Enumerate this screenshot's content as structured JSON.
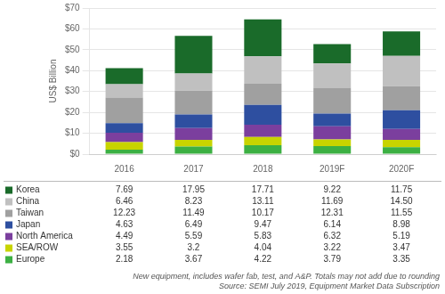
{
  "chart_data": {
    "type": "bar",
    "stacked": true,
    "categories": [
      "2016",
      "2017",
      "2018",
      "2019F",
      "2020F"
    ],
    "series": [
      {
        "name": "Europe",
        "color": "#3cb043",
        "values": [
          2.18,
          3.67,
          4.22,
          3.79,
          3.35
        ],
        "value_labels": [
          "2.18",
          "3.67",
          "4.22",
          "3.79",
          "3.35"
        ]
      },
      {
        "name": "SEA/ROW",
        "color": "#c8d400",
        "values": [
          3.55,
          3.2,
          4.04,
          3.22,
          3.47
        ],
        "value_labels": [
          "3.55",
          "3.2",
          "4.04",
          "3.22",
          "3.47"
        ]
      },
      {
        "name": "North America",
        "color": "#7b3f9e",
        "values": [
          4.49,
          5.59,
          5.83,
          6.32,
          5.19
        ],
        "value_labels": [
          "4.49",
          "5.59",
          "5.83",
          "6.32",
          "5.19"
        ]
      },
      {
        "name": "Japan",
        "color": "#2e4fa0",
        "values": [
          4.63,
          6.49,
          9.47,
          6.14,
          8.98
        ],
        "value_labels": [
          "4.63",
          "6.49",
          "9.47",
          "6.14",
          "8.98"
        ]
      },
      {
        "name": "Taiwan",
        "color": "#a0a0a0",
        "values": [
          12.23,
          11.49,
          10.17,
          12.31,
          11.55
        ],
        "value_labels": [
          "12.23",
          "11.49",
          "10.17",
          "12.31",
          "11.55"
        ]
      },
      {
        "name": "China",
        "color": "#c0c0c0",
        "values": [
          6.46,
          8.23,
          13.11,
          11.69,
          14.5
        ],
        "value_labels": [
          "6.46",
          "8.23",
          "13.11",
          "11.69",
          "14.50"
        ]
      },
      {
        "name": "Korea",
        "color": "#1a6b2a",
        "values": [
          7.69,
          17.95,
          17.71,
          9.22,
          11.75
        ],
        "value_labels": [
          "7.69",
          "17.95",
          "17.71",
          "9.22",
          "11.75"
        ]
      }
    ],
    "ylabel": "US$ Billion",
    "ylim": [
      0,
      70
    ],
    "yticks": [
      {
        "value": 0,
        "label": "$0"
      },
      {
        "value": 10,
        "label": "$10"
      },
      {
        "value": 20,
        "label": "$20"
      },
      {
        "value": 30,
        "label": "$30"
      },
      {
        "value": 40,
        "label": "$40"
      },
      {
        "value": 50,
        "label": "$50"
      },
      {
        "value": 60,
        "label": "$60"
      },
      {
        "value": 70,
        "label": "$70"
      }
    ],
    "grid": true,
    "legend": "bottom",
    "annotations": [
      "New equipment, includes wafer fab, test, and A&P. Totals may not add due to rounding",
      "Source: SEMI July 2019, Equipment Market Data Subscription"
    ]
  }
}
